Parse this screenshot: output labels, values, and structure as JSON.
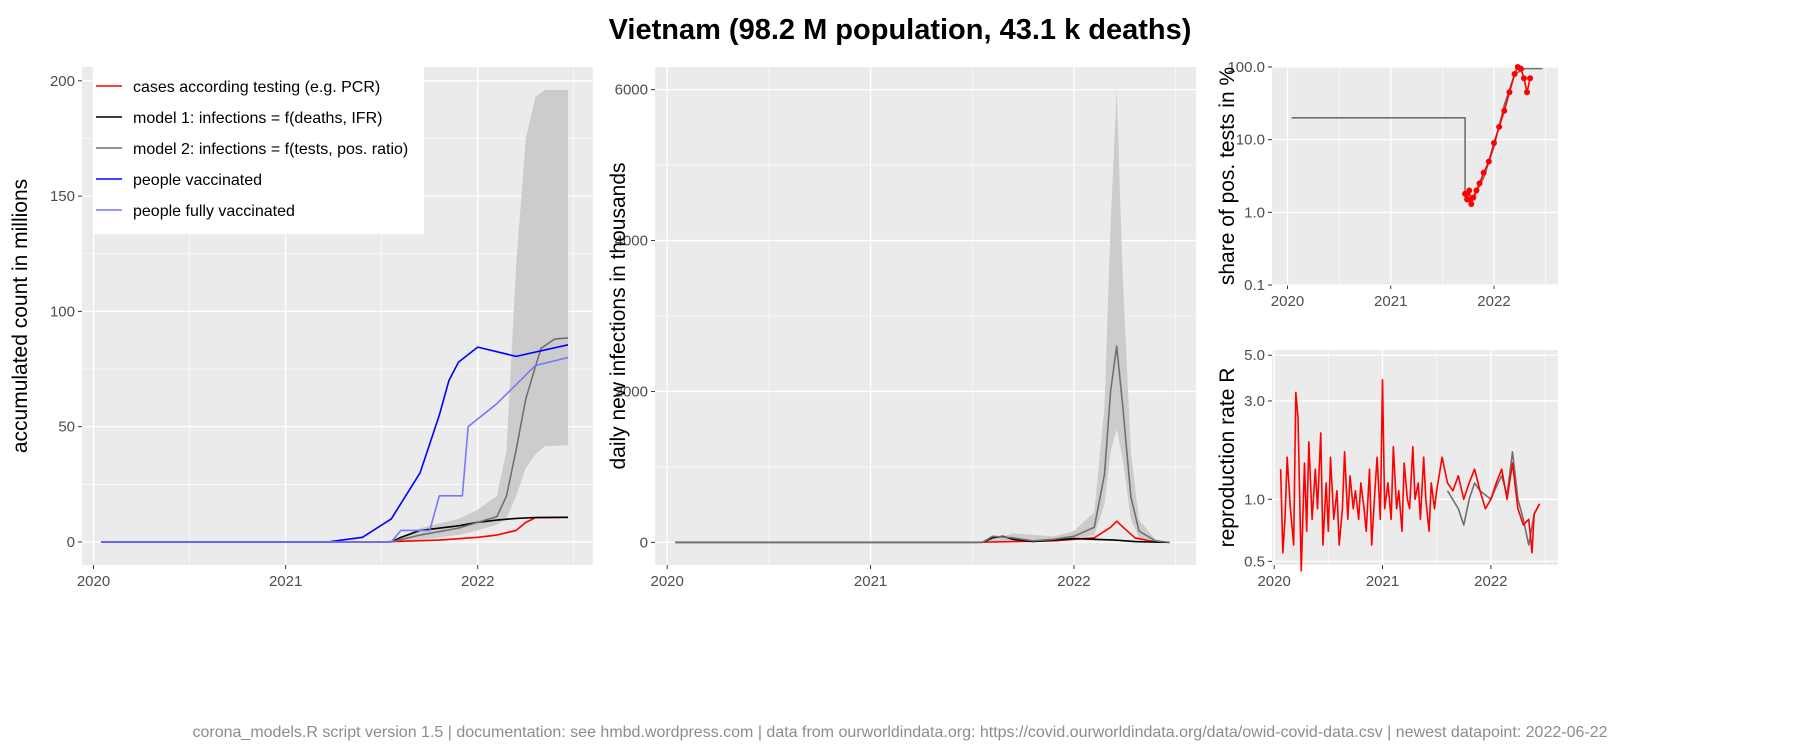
{
  "title": "Vietnam (98.2 M population, 43.1 k deaths)",
  "footer": "corona_models.R script version 1.5 | documentation: see hmbd.wordpress.com | data from ourworldindata.org: https://covid.ourworldindata.org/data/owid-covid-data.csv | newest datapoint: 2022-06-22",
  "colors": {
    "cases": "#ff0000",
    "model1": "#000000",
    "model2": "#707070",
    "vaccinated": "#0000ff",
    "fully_vaccinated": "#7777ff",
    "ribbon": "#cccccc",
    "panel_bg": "#ebebeb",
    "grid": "#ffffff"
  },
  "chart_data": [
    {
      "type": "line",
      "ylabel": "accumulated count in millions",
      "x_ticks": [
        "2020",
        "2021",
        "2022"
      ],
      "y_ticks": [
        0,
        50,
        100,
        150,
        200
      ],
      "ylim": [
        -10,
        206
      ],
      "legend": {
        "position": "top-left",
        "entries": [
          "cases according testing (e.g. PCR)",
          "model 1: infections = f(deaths, IFR)",
          "model 2: infections = f(tests, pos. ratio)",
          "people vaccinated",
          "people fully vaccinated"
        ]
      },
      "series": [
        {
          "name": "cases according testing (e.g. PCR)",
          "x": [
            2020.04,
            2021.5,
            2021.8,
            2022.0,
            2022.1,
            2022.2,
            2022.25,
            2022.3,
            2022.47
          ],
          "values": [
            0,
            0,
            0.8,
            2.0,
            3.0,
            5.0,
            8.5,
            10.5,
            10.7
          ]
        },
        {
          "name": "model 1: infections = f(deaths, IFR)",
          "x": [
            2020.04,
            2021.55,
            2021.6,
            2021.7,
            2021.9,
            2022.0,
            2022.1,
            2022.2,
            2022.3,
            2022.47
          ],
          "values": [
            0,
            0,
            2.0,
            5.0,
            7.0,
            8.5,
            9.5,
            10.2,
            10.6,
            10.7
          ]
        },
        {
          "name": "model 2: infections = f(tests, pos. ratio)",
          "x": [
            2020.04,
            2021.55,
            2021.7,
            2021.9,
            2022.0,
            2022.1,
            2022.15,
            2022.2,
            2022.25,
            2022.3,
            2022.33,
            2022.4,
            2022.47
          ],
          "values": [
            0,
            0,
            3.0,
            6.0,
            8.5,
            11.0,
            20.0,
            40.0,
            62.0,
            76.0,
            84.0,
            88.0,
            88.5
          ]
        },
        {
          "name": "people vaccinated",
          "x": [
            2020.04,
            2021.22,
            2021.4,
            2021.55,
            2021.7,
            2021.8,
            2021.85,
            2021.9,
            2022.0,
            2022.2,
            2022.47
          ],
          "values": [
            0,
            0,
            2.0,
            10.0,
            30.0,
            55.0,
            70.0,
            78.0,
            84.5,
            80.5,
            85.5
          ]
        },
        {
          "name": "people fully vaccinated",
          "x": [
            2020.04,
            2021.55,
            2021.6,
            2021.75,
            2021.8,
            2021.92,
            2021.95,
            2022.1,
            2022.3,
            2022.47
          ],
          "values": [
            0,
            0,
            5.0,
            5.0,
            20.0,
            20.0,
            50.0,
            60.0,
            76.5,
            80.0
          ]
        }
      ],
      "ribbon_model2": {
        "x": [
          2021.55,
          2021.7,
          2021.9,
          2022.0,
          2022.1,
          2022.15,
          2022.2,
          2022.25,
          2022.3,
          2022.35,
          2022.47
        ],
        "low": [
          0,
          1.0,
          3.0,
          5.0,
          7.5,
          10.0,
          20.0,
          32.0,
          38.0,
          41.5,
          42.0
        ],
        "high": [
          0,
          6.0,
          10.0,
          14.0,
          20.0,
          40.0,
          120.0,
          175.0,
          193.0,
          196.0,
          196.0
        ]
      }
    },
    {
      "type": "line",
      "ylabel": "daily new infections in thousands",
      "x_ticks": [
        "2020",
        "2021",
        "2022"
      ],
      "y_ticks": [
        0,
        2000,
        4000,
        6000
      ],
      "ylim": [
        -300,
        6300
      ],
      "series": [
        {
          "name": "cases according testing (e.g. PCR)",
          "x": [
            2020.04,
            2021.5,
            2021.7,
            2021.9,
            2022.0,
            2022.1,
            2022.18,
            2022.21,
            2022.25,
            2022.3,
            2022.4,
            2022.47
          ],
          "values": [
            0,
            0,
            10,
            20,
            40,
            60,
            200,
            280,
            180,
            60,
            5,
            0
          ]
        },
        {
          "name": "model 1: infections = f(deaths, IFR)",
          "x": [
            2020.04,
            2021.55,
            2021.6,
            2021.65,
            2021.7,
            2021.8,
            2021.9,
            2022.0,
            2022.1,
            2022.2,
            2022.3,
            2022.47
          ],
          "values": [
            0,
            0,
            60,
            80,
            40,
            10,
            30,
            50,
            40,
            30,
            10,
            0
          ]
        },
        {
          "name": "model 2: infections = f(tests, pos. ratio)",
          "x": [
            2020.04,
            2021.55,
            2021.6,
            2021.7,
            2021.8,
            2021.9,
            2022.0,
            2022.1,
            2022.15,
            2022.18,
            2022.21,
            2022.24,
            2022.28,
            2022.32,
            2022.4,
            2022.47
          ],
          "values": [
            0,
            0,
            80,
            60,
            20,
            40,
            80,
            200,
            900,
            2000,
            2600,
            1800,
            600,
            150,
            20,
            0
          ]
        }
      ],
      "ribbon_model2": {
        "x": [
          2021.55,
          2021.7,
          2021.9,
          2022.0,
          2022.1,
          2022.15,
          2022.18,
          2022.21,
          2022.24,
          2022.28,
          2022.32,
          2022.4,
          2022.47
        ],
        "low": [
          0,
          30,
          20,
          40,
          100,
          500,
          1200,
          1500,
          1100,
          300,
          60,
          5,
          0
        ],
        "high": [
          0,
          120,
          80,
          150,
          400,
          1800,
          4200,
          6000,
          3500,
          1200,
          300,
          40,
          0
        ]
      }
    },
    {
      "type": "line",
      "ylabel": "share of pos. tests in %",
      "scale": "log10",
      "x_ticks": [
        "2020",
        "2021",
        "2022"
      ],
      "y_ticks": [
        "0.1",
        "1.0",
        "10.0",
        "100.0"
      ],
      "ylim": [
        0.1,
        100
      ],
      "series": [
        {
          "name": "model 2: infections = f(tests, pos. ratio)",
          "x": [
            2020.04,
            2021.72,
            2021.72,
            2021.78,
            2021.9,
            2022.0,
            2022.1,
            2022.2,
            2022.3,
            2022.47
          ],
          "values": [
            20,
            20,
            1.6,
            1.4,
            3.0,
            8.0,
            30.0,
            80.0,
            95.0,
            95.0
          ]
        },
        {
          "name": "share of pos. tests",
          "x": [
            2021.72,
            2021.74,
            2021.76,
            2021.78,
            2021.8,
            2021.83,
            2021.86,
            2021.9,
            2021.95,
            2022.0,
            2022.05,
            2022.1,
            2022.15,
            2022.2,
            2022.23,
            2022.26,
            2022.29,
            2022.32,
            2022.35
          ],
          "values": [
            1.8,
            1.5,
            2.0,
            1.3,
            1.6,
            2.0,
            2.5,
            3.5,
            5.0,
            9.0,
            15.0,
            25.0,
            45.0,
            80.0,
            100.0,
            95.0,
            70.0,
            45.0,
            70.0
          ]
        }
      ]
    },
    {
      "type": "line",
      "ylabel": "reproduction rate R",
      "scale": "log10",
      "x_ticks": [
        "2020",
        "2021",
        "2022"
      ],
      "y_ticks": [
        "0.5",
        "1.0",
        "3.0",
        "5.0"
      ],
      "ylim": [
        0.48,
        5.3
      ],
      "series": [
        {
          "name": "model 2: infections = f(tests, pos. ratio)",
          "x": [
            2021.6,
            2021.7,
            2021.75,
            2021.8,
            2021.85,
            2021.9,
            2022.0,
            2022.05,
            2022.1,
            2022.15,
            2022.2,
            2022.25,
            2022.3,
            2022.35,
            2022.4,
            2022.45
          ],
          "values": [
            1.1,
            0.9,
            0.75,
            1.0,
            1.2,
            1.1,
            1.0,
            1.15,
            1.3,
            1.05,
            1.7,
            1.0,
            0.8,
            0.6,
            0.85,
            0.95
          ]
        },
        {
          "name": "reproduction rate R",
          "x": [
            2020.06,
            2020.08,
            2020.1,
            2020.12,
            2020.15,
            2020.18,
            2020.2,
            2020.22,
            2020.25,
            2020.28,
            2020.3,
            2020.32,
            2020.35,
            2020.38,
            2020.4,
            2020.43,
            2020.45,
            2020.48,
            2020.5,
            2020.52,
            2020.55,
            2020.58,
            2020.6,
            2020.63,
            2020.65,
            2020.68,
            2020.7,
            2020.73,
            2020.75,
            2020.78,
            2020.8,
            2020.83,
            2020.85,
            2020.88,
            2020.9,
            2020.93,
            2020.95,
            2020.98,
            2021.0,
            2021.02,
            2021.05,
            2021.08,
            2021.1,
            2021.13,
            2021.15,
            2021.18,
            2021.2,
            2021.23,
            2021.25,
            2021.28,
            2021.3,
            2021.33,
            2021.35,
            2021.38,
            2021.4,
            2021.43,
            2021.45,
            2021.48,
            2021.5,
            2021.55,
            2021.6,
            2021.65,
            2021.7,
            2021.75,
            2021.8,
            2021.85,
            2021.9,
            2021.95,
            2022.0,
            2022.05,
            2022.1,
            2022.15,
            2022.2,
            2022.25,
            2022.3,
            2022.35,
            2022.38,
            2022.4,
            2022.45
          ],
          "values": [
            1.4,
            0.55,
            0.8,
            1.6,
            0.9,
            0.6,
            3.3,
            2.5,
            0.45,
            1.5,
            0.7,
            1.9,
            0.8,
            1.4,
            0.9,
            2.1,
            0.6,
            1.2,
            0.7,
            1.6,
            0.8,
            1.1,
            0.6,
            0.9,
            1.7,
            0.8,
            1.3,
            0.9,
            1.1,
            0.8,
            1.2,
            0.9,
            0.7,
            1.4,
            0.6,
            1.1,
            1.6,
            0.8,
            3.8,
            0.9,
            1.2,
            0.8,
            1.8,
            0.9,
            1.1,
            0.7,
            1.5,
            1.0,
            0.9,
            1.8,
            1.0,
            1.2,
            0.8,
            1.6,
            1.0,
            0.7,
            1.2,
            0.9,
            1.1,
            1.6,
            1.2,
            1.1,
            1.3,
            1.0,
            1.2,
            1.4,
            1.1,
            0.9,
            1.0,
            1.2,
            1.4,
            1.0,
            1.5,
            0.9,
            0.75,
            0.8,
            0.55,
            0.85,
            0.95
          ]
        }
      ]
    }
  ]
}
